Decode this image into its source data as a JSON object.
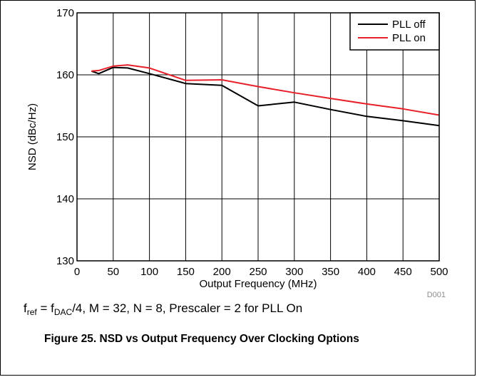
{
  "chart_data": {
    "type": "line",
    "title": "",
    "xlabel": "Output Frequency (MHz)",
    "ylabel": "NSD (dBc/Hz)",
    "xlim": [
      0,
      500
    ],
    "ylim": [
      130,
      170
    ],
    "x_ticks": [
      "0",
      "50",
      "100",
      "150",
      "200",
      "250",
      "300",
      "350",
      "400",
      "450",
      "500"
    ],
    "y_ticks": [
      "130",
      "140",
      "150",
      "160",
      "170"
    ],
    "grid": true,
    "legend_position": "top-right",
    "series": [
      {
        "name": "PLL off",
        "color": "#000000",
        "x": [
          20,
          30,
          50,
          70,
          100,
          150,
          200,
          250,
          300,
          350,
          400,
          450,
          500
        ],
        "y": [
          160.6,
          160.2,
          161.2,
          161.1,
          160.2,
          158.6,
          158.3,
          155.0,
          155.6,
          154.4,
          153.3,
          152.6,
          151.8
        ]
      },
      {
        "name": "PLL on",
        "color": "#e8202a",
        "x": [
          20,
          30,
          50,
          70,
          100,
          150,
          200,
          250,
          300,
          350,
          400,
          450,
          500
        ],
        "y": [
          160.6,
          160.7,
          161.4,
          161.6,
          161.1,
          159.1,
          159.2,
          158.1,
          157.1,
          156.2,
          155.3,
          154.5,
          153.5
        ]
      }
    ]
  },
  "figure_code": "D001",
  "caption": {
    "f1": "f",
    "f1_sub": "ref",
    "eq": " = f",
    "f2_sub": "DAC",
    "rest": "/4, M = 32, N = 8, Prescaler = 2 for PLL On"
  },
  "figure_title": "Figure 25. NSD vs Output Frequency Over Clocking Options"
}
